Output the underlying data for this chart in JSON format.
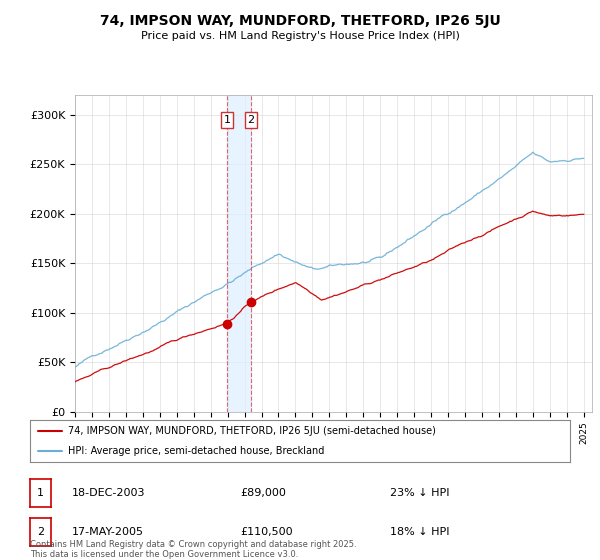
{
  "title": "74, IMPSON WAY, MUNDFORD, THETFORD, IP26 5JU",
  "subtitle": "Price paid vs. HM Land Registry's House Price Index (HPI)",
  "legend_line1": "74, IMPSON WAY, MUNDFORD, THETFORD, IP26 5JU (semi-detached house)",
  "legend_line2": "HPI: Average price, semi-detached house, Breckland",
  "transactions": [
    {
      "label": "1",
      "date": "18-DEC-2003",
      "price": 89000,
      "note": "23% ↓ HPI"
    },
    {
      "label": "2",
      "date": "17-MAY-2005",
      "price": 110500,
      "note": "18% ↓ HPI"
    }
  ],
  "footer": "Contains HM Land Registry data © Crown copyright and database right 2025.\nThis data is licensed under the Open Government Licence v3.0.",
  "hpi_color": "#6aaed6",
  "price_color": "#cc0000",
  "marker_color": "#cc0000",
  "annotation_bg": "#d0e8f8",
  "shade_color": "#ddeeff",
  "ylim": [
    0,
    320000
  ],
  "yticks": [
    0,
    50000,
    100000,
    150000,
    200000,
    250000,
    300000
  ],
  "ytick_labels": [
    "£0",
    "£50K",
    "£100K",
    "£150K",
    "£200K",
    "£250K",
    "£300K"
  ],
  "x_start_year": 1995,
  "x_end_year": 2025
}
